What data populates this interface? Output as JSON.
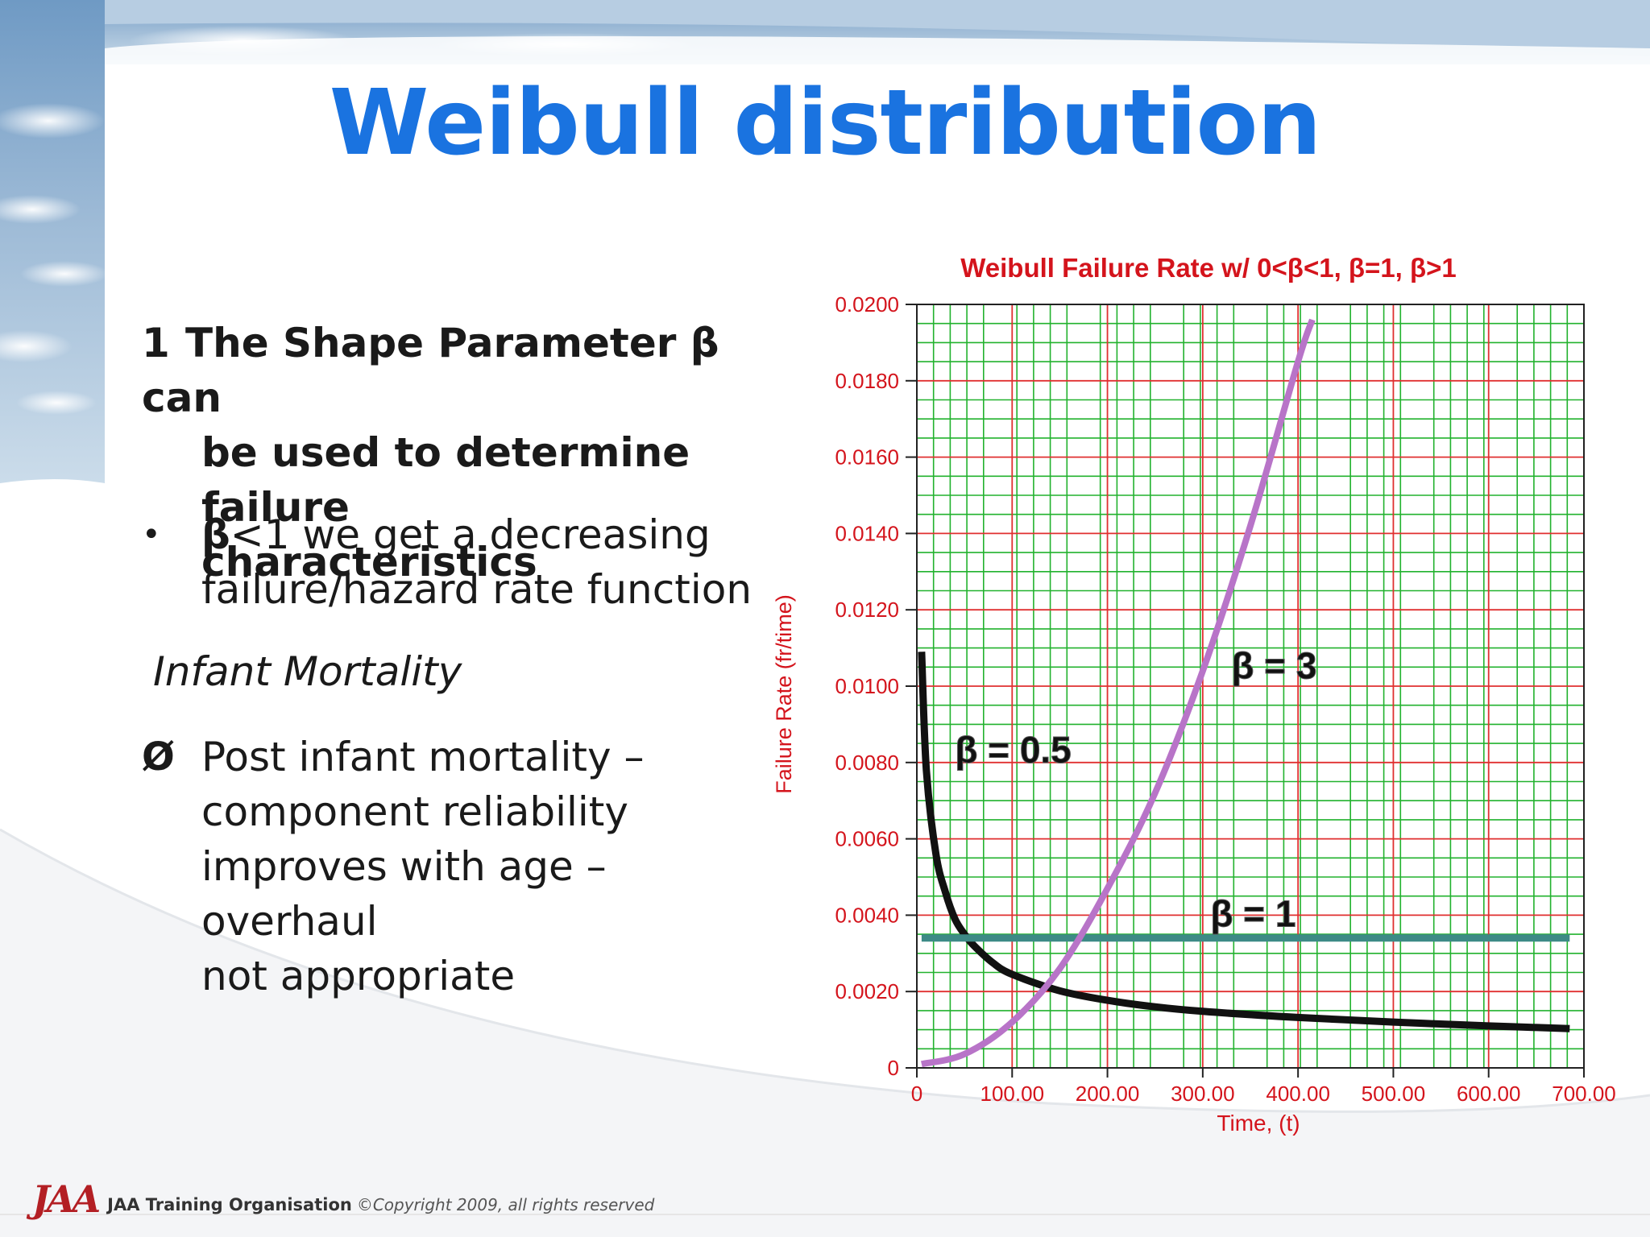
{
  "slide": {
    "title": "Weibull distribution",
    "point1_number": "1",
    "point1_line1": "The Shape Parameter β can",
    "point1_line2": "be used to determine failure",
    "point1_line3": "characteristics",
    "bullet_marker": "•",
    "bullet_beta": "β",
    "bullet_rest": "<1 we get a decreasing",
    "bullet_line2": "failure/hazard rate function",
    "italic_label": "Infant Mortality",
    "arrow_marker": "Ø",
    "arrow_line1": "Post infant mortality –",
    "arrow_line2": "component reliability",
    "arrow_line3": "improves with age – overhaul",
    "arrow_line4": "not appropriate"
  },
  "footer": {
    "logo_text": "JAA",
    "org": "JAA Training Organisation",
    "copyright": "©Copyright 2009, all rights reserved"
  },
  "colors": {
    "title": "#1a73e0",
    "chart_text": "#d4141c",
    "major_grid": "#e03030",
    "minor_grid": "#22b22e",
    "beta05": "#111111",
    "beta1": "#3d8a86",
    "beta3": "#b874c8"
  },
  "chart_data": {
    "type": "line",
    "title": "Weibull Failure Rate w/ 0<β<1, β=1, β>1",
    "xlabel": "Time, (t)",
    "ylabel": "Failure Rate (fr/time)",
    "xlim": [
      0,
      700
    ],
    "ylim": [
      0,
      0.02
    ],
    "x_tick_values": [
      0,
      100,
      200,
      300,
      400,
      500,
      600,
      700
    ],
    "x_tick_labels": [
      "0",
      "100.00",
      "200.00",
      "300.00",
      "400.00",
      "500.00",
      "600.00",
      "700.00"
    ],
    "y_tick_values": [
      0,
      0.002,
      0.004,
      0.006,
      0.008,
      0.01,
      0.012,
      0.014,
      0.016,
      0.018,
      0.02
    ],
    "y_tick_labels": [
      "0",
      "0.0020",
      "0.0040",
      "0.0060",
      "0.0080",
      "0.0100",
      "0.0120",
      "0.0140",
      "0.0160",
      "0.0180",
      "0.0200"
    ],
    "grid": true,
    "series": [
      {
        "name": "β = 0.5",
        "x": [
          5,
          10,
          20,
          30,
          40,
          50,
          60,
          80,
          100,
          150,
          200,
          250,
          300,
          400,
          500,
          600,
          685
        ],
        "y": [
          0.0109,
          0.0078,
          0.0056,
          0.0046,
          0.0039,
          0.0035,
          0.0032,
          0.00275,
          0.00245,
          0.00202,
          0.00177,
          0.0016,
          0.00148,
          0.00132,
          0.0012,
          0.0011,
          0.00103
        ]
      },
      {
        "name": "β = 1",
        "x": [
          5,
          685
        ],
        "y": [
          0.0034,
          0.0034
        ]
      },
      {
        "name": "β = 3",
        "x": [
          5,
          50,
          100,
          150,
          200,
          250,
          300,
          350,
          400,
          415
        ],
        "y": [
          0.0001,
          0.00036,
          0.0012,
          0.0026,
          0.0047,
          0.0072,
          0.0104,
          0.0142,
          0.0185,
          0.0196
        ]
      }
    ]
  }
}
